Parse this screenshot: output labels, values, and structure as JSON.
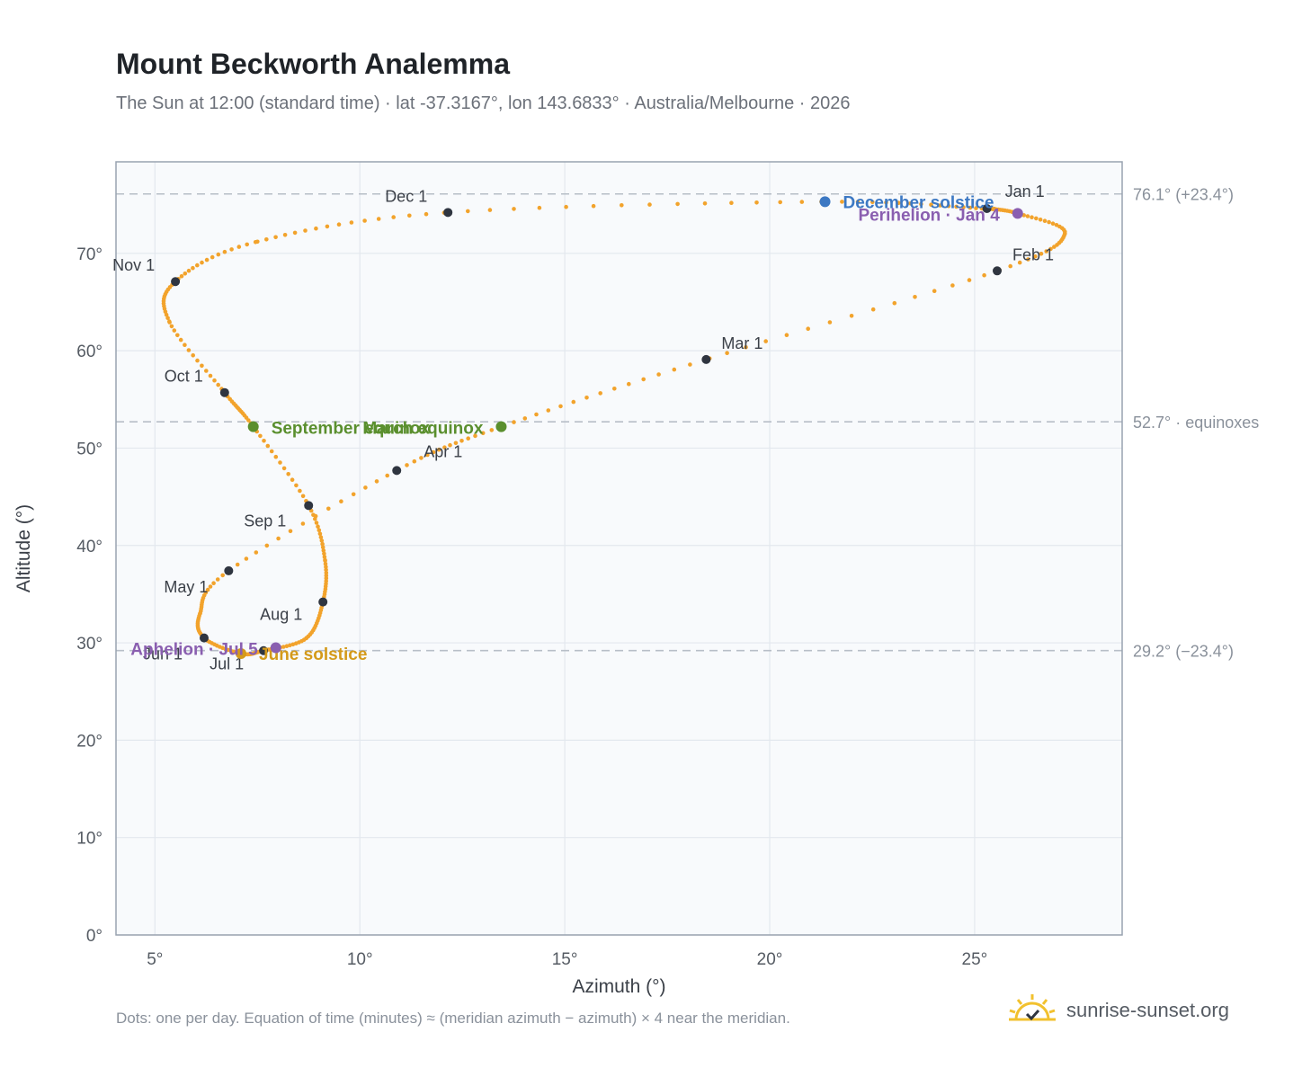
{
  "header": {
    "title": "Mount Beckworth Analemma",
    "subtitle": "The Sun at 12:00 (standard time) · lat -37.3167°, lon 143.6833° · Australia/Melbourne · 2026"
  },
  "footnote": "Dots: one per day. Equation of time (minutes) ≈ (meridian azimuth − azimuth) × 4 near the meridian.",
  "brand": {
    "name": "sunrise-sunset.org",
    "icon": "sun-logo-icon",
    "color": "#f2c12e"
  },
  "colors": {
    "curve": "#f2a32c",
    "month_marker": "#2f3540",
    "equinox": "#5a8f2e",
    "december_solstice": "#3c78c3",
    "june_solstice": "#d49a1a",
    "apsis": "#8a5fb0",
    "reference_line": "#b7bec7",
    "plot_background": "#f8fafc",
    "grid": "#e3e8ee",
    "frame": "#99a3b0"
  },
  "chart_data": {
    "type": "scatter",
    "title": "Mount Beckworth Analemma",
    "xlabel": "Azimuth (°)",
    "ylabel": "Altitude (°)",
    "xlim": [
      4.05,
      28.6
    ],
    "ylim": [
      0,
      79.4
    ],
    "xticks": [
      5,
      10,
      15,
      20,
      25
    ],
    "xtick_labels": [
      "5°",
      "10°",
      "15°",
      "20°",
      "25°"
    ],
    "yticks": [
      0,
      10,
      20,
      30,
      40,
      50,
      60,
      70
    ],
    "ytick_labels": [
      "0°",
      "10°",
      "20°",
      "30°",
      "40°",
      "50°",
      "60°",
      "70°"
    ],
    "grid": true,
    "reference_lines": [
      {
        "y": 76.1,
        "label": "76.1° (+23.4°)"
      },
      {
        "y": 52.7,
        "label": "52.7° · equinoxes"
      },
      {
        "y": 29.2,
        "label": "29.2° (−23.4°)"
      }
    ],
    "month_markers": [
      {
        "label": "Jan 1",
        "azimuth": 25.3,
        "altitude": 74.6
      },
      {
        "label": "Feb 1",
        "azimuth": 25.55,
        "altitude": 68.2
      },
      {
        "label": "Mar 1",
        "azimuth": 18.45,
        "altitude": 59.1
      },
      {
        "label": "Apr 1",
        "azimuth": 10.9,
        "altitude": 47.7
      },
      {
        "label": "May 1",
        "azimuth": 6.8,
        "altitude": 37.4
      },
      {
        "label": "Jun 1",
        "azimuth": 6.2,
        "altitude": 30.5
      },
      {
        "label": "Jul 1",
        "azimuth": 7.65,
        "altitude": 29.2
      },
      {
        "label": "Aug 1",
        "azimuth": 9.1,
        "altitude": 34.2
      },
      {
        "label": "Sep 1",
        "azimuth": 8.75,
        "altitude": 44.1
      },
      {
        "label": "Oct 1",
        "azimuth": 6.7,
        "altitude": 55.7
      },
      {
        "label": "Nov 1",
        "azimuth": 5.5,
        "altitude": 67.1
      },
      {
        "label": "Dec 1",
        "azimuth": 12.15,
        "altitude": 74.2
      }
    ],
    "events": [
      {
        "label": "December solstice",
        "azimuth": 21.35,
        "altitude": 75.3,
        "color": "#3c78c3"
      },
      {
        "label": "Perihelion · Jan 4",
        "azimuth": 26.05,
        "altitude": 74.1,
        "color": "#8a5fb0"
      },
      {
        "label": "March equinox",
        "azimuth": 13.45,
        "altitude": 52.2,
        "color": "#5a8f2e"
      },
      {
        "label": "September equinox",
        "azimuth": 7.4,
        "altitude": 52.2,
        "color": "#5a8f2e"
      },
      {
        "label": "June solstice",
        "azimuth": 7.1,
        "altitude": 28.9,
        "color": "#d49a1a"
      },
      {
        "label": "Aphelion · Jul 5",
        "azimuth": 7.95,
        "altitude": 29.5,
        "color": "#8a5fb0"
      }
    ],
    "path_anchors": [
      {
        "date": "Jan 1",
        "azimuth": 25.3,
        "altitude": 74.6
      },
      {
        "date": "Jan 4",
        "azimuth": 26.05,
        "altitude": 74.1
      },
      {
        "date": "Jan 15",
        "azimuth": 27.2,
        "altitude": 72.0
      },
      {
        "date": "Feb 1",
        "azimuth": 25.55,
        "altitude": 68.2
      },
      {
        "date": "Mar 1",
        "azimuth": 18.45,
        "altitude": 59.1
      },
      {
        "date": "Mar 20",
        "azimuth": 13.45,
        "altitude": 52.2
      },
      {
        "date": "Apr 1",
        "azimuth": 10.9,
        "altitude": 47.7
      },
      {
        "date": "May 1",
        "azimuth": 6.8,
        "altitude": 37.4
      },
      {
        "date": "May 15",
        "azimuth": 6.1,
        "altitude": 33.0
      },
      {
        "date": "Jun 1",
        "azimuth": 6.2,
        "altitude": 30.5
      },
      {
        "date": "Jun 21",
        "azimuth": 7.1,
        "altitude": 28.9
      },
      {
        "date": "Jul 1",
        "azimuth": 7.65,
        "altitude": 29.2
      },
      {
        "date": "Jul 15",
        "azimuth": 8.7,
        "altitude": 30.5
      },
      {
        "date": "Aug 1",
        "azimuth": 9.1,
        "altitude": 34.2
      },
      {
        "date": "Aug 15",
        "azimuth": 9.15,
        "altitude": 38.5
      },
      {
        "date": "Sep 1",
        "azimuth": 8.75,
        "altitude": 44.1
      },
      {
        "date": "Sep 22",
        "azimuth": 7.4,
        "altitude": 52.2
      },
      {
        "date": "Oct 1",
        "azimuth": 6.7,
        "altitude": 55.7
      },
      {
        "date": "Oct 20",
        "azimuth": 5.35,
        "altitude": 63.0
      },
      {
        "date": "Nov 1",
        "azimuth": 5.5,
        "altitude": 67.1
      },
      {
        "date": "Nov 15",
        "azimuth": 7.5,
        "altitude": 71.2
      },
      {
        "date": "Dec 1",
        "azimuth": 12.15,
        "altitude": 74.2
      },
      {
        "date": "Dec 21",
        "azimuth": 21.35,
        "altitude": 75.3
      },
      {
        "date": "Dec 31",
        "azimuth": 25.2,
        "altitude": 74.6
      }
    ]
  }
}
